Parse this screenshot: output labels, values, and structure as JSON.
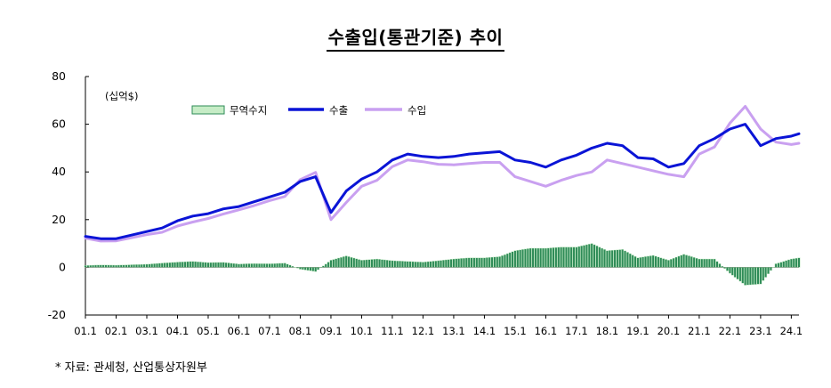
{
  "chart_data": {
    "type": "line",
    "title": "수출입(통관기준) 추이",
    "unit_label": "(십억$)",
    "source": "* 자료: 관세청, 산업통상자원부",
    "ylim": [
      -20,
      80
    ],
    "yticks": [
      "80",
      "60",
      "40",
      "20",
      "0",
      "-20"
    ],
    "ytick_values": [
      80,
      60,
      40,
      20,
      0,
      -20
    ],
    "x_start": 2001.0,
    "x_end": 2024.25,
    "xticks": [
      "01.1",
      "02.1",
      "03.1",
      "04.1",
      "05.1",
      "06.1",
      "07.1",
      "08.1",
      "09.1",
      "10.1",
      "11.1",
      "12.1",
      "13.1",
      "14.1",
      "15.1",
      "16.1",
      "17.1",
      "18.1",
      "19.1",
      "20.1",
      "21.1",
      "22.1",
      "23.1",
      "24.1"
    ],
    "legend_position": "top-left",
    "grid": false,
    "colors": {
      "balance_fill": "#c6ecc6",
      "balance_bar": "#2e8b57",
      "export": "#0a14d6",
      "import": "#c9a0f0"
    },
    "series": [
      {
        "name": "무역수지",
        "kind": "bar",
        "x": [
          2001.0,
          2001.5,
          2002.0,
          2002.5,
          2003.0,
          2003.5,
          2004.0,
          2004.5,
          2005.0,
          2005.5,
          2006.0,
          2006.5,
          2007.0,
          2007.5,
          2008.0,
          2008.5,
          2009.0,
          2009.5,
          2010.0,
          2010.5,
          2011.0,
          2011.5,
          2012.0,
          2012.5,
          2013.0,
          2013.5,
          2014.0,
          2014.5,
          2015.0,
          2015.5,
          2016.0,
          2016.5,
          2017.0,
          2017.5,
          2018.0,
          2018.5,
          2019.0,
          2019.5,
          2020.0,
          2020.5,
          2021.0,
          2021.5,
          2022.0,
          2022.5,
          2023.0,
          2023.5,
          2024.0,
          2024.25
        ],
        "values": [
          0.8,
          1.0,
          0.9,
          1.1,
          1.3,
          1.8,
          2.2,
          2.5,
          2.0,
          2.1,
          1.4,
          1.6,
          1.5,
          1.8,
          -0.8,
          -1.8,
          3.0,
          4.8,
          3.0,
          3.5,
          2.8,
          2.5,
          2.2,
          2.8,
          3.5,
          4.0,
          4.0,
          4.5,
          7.0,
          8.0,
          8.0,
          8.5,
          8.5,
          10.0,
          7.0,
          7.5,
          4.0,
          5.0,
          3.0,
          5.5,
          3.5,
          3.5,
          -2.5,
          -7.5,
          -7.0,
          1.5,
          3.5,
          4.0
        ]
      },
      {
        "name": "수출",
        "kind": "line",
        "x": [
          2001.0,
          2001.5,
          2002.0,
          2002.5,
          2003.0,
          2003.5,
          2004.0,
          2004.5,
          2005.0,
          2005.5,
          2006.0,
          2006.5,
          2007.0,
          2007.5,
          2008.0,
          2008.5,
          2009.0,
          2009.5,
          2010.0,
          2010.5,
          2011.0,
          2011.5,
          2012.0,
          2012.5,
          2013.0,
          2013.5,
          2014.0,
          2014.5,
          2015.0,
          2015.5,
          2016.0,
          2016.5,
          2017.0,
          2017.5,
          2018.0,
          2018.5,
          2019.0,
          2019.5,
          2020.0,
          2020.5,
          2021.0,
          2021.5,
          2022.0,
          2022.5,
          2023.0,
          2023.5,
          2024.0,
          2024.25
        ],
        "values": [
          13.0,
          12.0,
          12.0,
          13.5,
          15.0,
          16.5,
          19.5,
          21.5,
          22.5,
          24.5,
          25.5,
          27.5,
          29.5,
          31.5,
          36.0,
          38.0,
          23.0,
          32.0,
          37.0,
          40.0,
          45.0,
          47.5,
          46.5,
          46.0,
          46.5,
          47.5,
          48.0,
          48.5,
          45.0,
          44.0,
          42.0,
          45.0,
          47.0,
          50.0,
          52.0,
          51.0,
          46.0,
          45.5,
          42.0,
          43.5,
          51.0,
          54.0,
          58.0,
          60.0,
          51.0,
          54.0,
          55.0,
          56.0
        ]
      },
      {
        "name": "수입",
        "kind": "line",
        "x": [
          2001.0,
          2001.5,
          2002.0,
          2002.5,
          2003.0,
          2003.5,
          2004.0,
          2004.5,
          2005.0,
          2005.5,
          2006.0,
          2006.5,
          2007.0,
          2007.5,
          2008.0,
          2008.5,
          2009.0,
          2009.5,
          2010.0,
          2010.5,
          2011.0,
          2011.5,
          2012.0,
          2012.5,
          2013.0,
          2013.5,
          2014.0,
          2014.5,
          2015.0,
          2015.5,
          2016.0,
          2016.5,
          2017.0,
          2017.5,
          2018.0,
          2018.5,
          2019.0,
          2019.5,
          2020.0,
          2020.5,
          2021.0,
          2021.5,
          2022.0,
          2022.5,
          2023.0,
          2023.5,
          2024.0,
          2024.25
        ],
        "values": [
          12.2,
          11.0,
          11.1,
          12.4,
          13.7,
          14.7,
          17.3,
          19.0,
          20.5,
          22.4,
          24.1,
          25.9,
          28.0,
          29.7,
          36.8,
          39.8,
          20.0,
          27.2,
          34.0,
          36.5,
          42.2,
          45.0,
          44.3,
          43.2,
          43.0,
          43.5,
          44.0,
          44.0,
          38.0,
          36.0,
          34.0,
          36.5,
          38.5,
          40.0,
          45.0,
          43.5,
          42.0,
          40.5,
          39.0,
          38.0,
          47.5,
          50.5,
          60.5,
          67.5,
          58.0,
          52.5,
          51.5,
          52.0
        ]
      }
    ]
  }
}
